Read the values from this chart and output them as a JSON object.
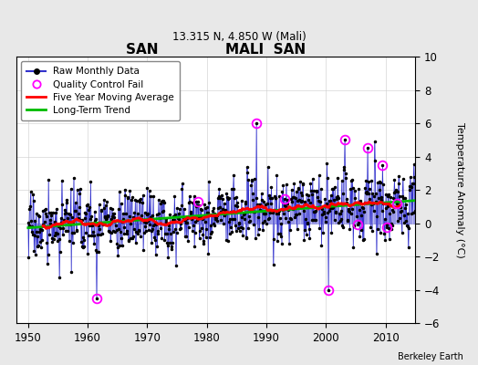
{
  "title1": "SAN              MALI  SAN",
  "title2": "13.315 N, 4.850 W (Mali)",
  "ylabel": "Temperature Anomaly (°C)",
  "xlabel_note": "Berkeley Earth",
  "xlim": [
    1948,
    2015
  ],
  "ylim": [
    -6,
    10
  ],
  "yticks": [
    -6,
    -4,
    -2,
    0,
    2,
    4,
    6,
    8,
    10
  ],
  "xticks": [
    1950,
    1960,
    1970,
    1980,
    1990,
    2000,
    2010
  ],
  "bg_color": "#e8e8e8",
  "plot_bg_color": "#ffffff",
  "raw_line_color": "#3333cc",
  "raw_marker_color": "#000000",
  "qc_fail_color": "#ff00ff",
  "five_year_color": "#ff0000",
  "long_term_color": "#00bb00",
  "stem_color": "#6666dd",
  "seed": 17
}
